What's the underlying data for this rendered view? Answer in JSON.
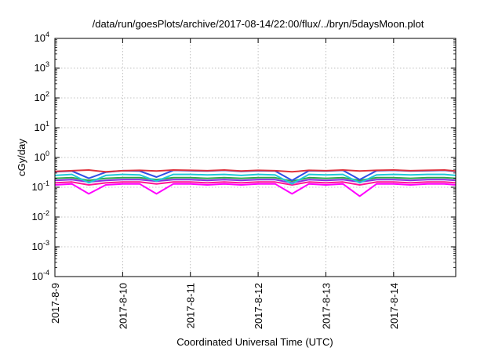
{
  "chart_data": {
    "type": "line",
    "title": "/data/run/goesPlots/archive/2017-08-14/22:00/flux/../bryn/5daysMoon.plot",
    "xlabel": "Coordinated Universal Time (UTC)",
    "ylabel": "cGy/day",
    "yscale": "log",
    "ylim": [
      0.0001,
      10000
    ],
    "xlim": [
      "2017-08-09",
      "2017-08-14 22:00"
    ],
    "grid": true,
    "x_tick_labels": [
      "2017-8-9",
      "2017-8-10",
      "2017-8-11",
      "2017-8-12",
      "2017-8-13",
      "2017-8-14"
    ],
    "y_ticks": [
      {
        "base": "10",
        "exp": "-4"
      },
      {
        "base": "10",
        "exp": "-3"
      },
      {
        "base": "10",
        "exp": "-2"
      },
      {
        "base": "10",
        "exp": "-1"
      },
      {
        "base": "10",
        "exp": "0"
      },
      {
        "base": "10",
        "exp": "1"
      },
      {
        "base": "10",
        "exp": "2"
      },
      {
        "base": "10",
        "exp": "3"
      },
      {
        "base": "10",
        "exp": "4"
      }
    ],
    "x": [
      "2017-08-09 00:00",
      "2017-08-09 06:00",
      "2017-08-09 12:00",
      "2017-08-09 18:00",
      "2017-08-10 00:00",
      "2017-08-10 06:00",
      "2017-08-10 12:00",
      "2017-08-10 18:00",
      "2017-08-11 00:00",
      "2017-08-11 06:00",
      "2017-08-11 12:00",
      "2017-08-11 18:00",
      "2017-08-12 00:00",
      "2017-08-12 06:00",
      "2017-08-12 12:00",
      "2017-08-12 18:00",
      "2017-08-13 00:00",
      "2017-08-13 06:00",
      "2017-08-13 12:00",
      "2017-08-13 18:00",
      "2017-08-14 00:00",
      "2017-08-14 06:00",
      "2017-08-14 12:00",
      "2017-08-14 18:00",
      "2017-08-14 22:00"
    ],
    "series": [
      {
        "color": "#e0303a",
        "values": [
          0.34,
          0.36,
          0.38,
          0.33,
          0.36,
          0.37,
          0.35,
          0.38,
          0.37,
          0.36,
          0.38,
          0.35,
          0.37,
          0.36,
          0.33,
          0.37,
          0.36,
          0.38,
          0.35,
          0.37,
          0.38,
          0.36,
          0.37,
          0.38,
          0.35
        ]
      },
      {
        "color": "#2f4ee6",
        "values": [
          0.33,
          0.35,
          0.2,
          0.32,
          0.36,
          0.35,
          0.22,
          0.37,
          0.36,
          0.35,
          0.37,
          0.34,
          0.36,
          0.35,
          0.17,
          0.36,
          0.35,
          0.37,
          0.18,
          0.36,
          0.37,
          0.35,
          0.36,
          0.37,
          0.34
        ]
      },
      {
        "color": "#20c8d8",
        "values": [
          0.25,
          0.27,
          0.14,
          0.25,
          0.27,
          0.26,
          0.16,
          0.27,
          0.27,
          0.26,
          0.27,
          0.25,
          0.27,
          0.26,
          0.13,
          0.27,
          0.26,
          0.27,
          0.14,
          0.26,
          0.27,
          0.26,
          0.27,
          0.27,
          0.25
        ]
      },
      {
        "color": "#2ea84a",
        "values": [
          0.2,
          0.21,
          0.17,
          0.2,
          0.21,
          0.21,
          0.18,
          0.21,
          0.21,
          0.2,
          0.21,
          0.2,
          0.21,
          0.21,
          0.16,
          0.21,
          0.2,
          0.21,
          0.17,
          0.21,
          0.21,
          0.2,
          0.21,
          0.21,
          0.2
        ]
      },
      {
        "color": "#8a2be2",
        "values": [
          0.17,
          0.18,
          0.15,
          0.17,
          0.18,
          0.18,
          0.16,
          0.18,
          0.18,
          0.17,
          0.18,
          0.17,
          0.18,
          0.18,
          0.14,
          0.18,
          0.17,
          0.18,
          0.15,
          0.18,
          0.18,
          0.17,
          0.18,
          0.18,
          0.17
        ]
      },
      {
        "color": "#ff1493",
        "values": [
          0.14,
          0.15,
          0.12,
          0.14,
          0.15,
          0.15,
          0.13,
          0.15,
          0.15,
          0.14,
          0.15,
          0.14,
          0.15,
          0.15,
          0.12,
          0.15,
          0.14,
          0.15,
          0.12,
          0.15,
          0.15,
          0.14,
          0.15,
          0.15,
          0.14
        ]
      },
      {
        "color": "#ff00ff",
        "values": [
          0.12,
          0.13,
          0.06,
          0.12,
          0.13,
          0.13,
          0.06,
          0.13,
          0.13,
          0.12,
          0.13,
          0.12,
          0.13,
          0.13,
          0.06,
          0.13,
          0.12,
          0.13,
          0.05,
          0.13,
          0.13,
          0.12,
          0.13,
          0.13,
          0.12
        ]
      }
    ]
  }
}
